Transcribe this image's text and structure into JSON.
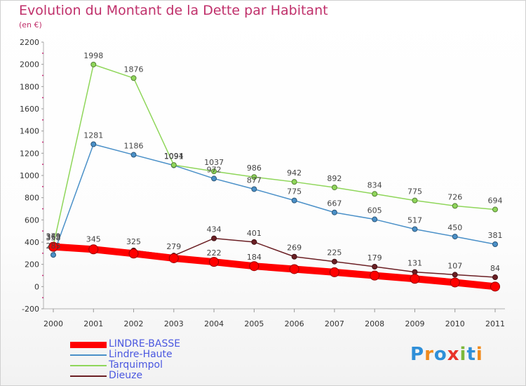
{
  "title": "Evolution du Montant de la Dette par Habitant",
  "unit": "(en €)",
  "logo": {
    "letters": [
      "P",
      "r",
      "o",
      "x",
      "i",
      "t",
      "i"
    ],
    "colors": [
      "#2f8fd8",
      "#f08a1c",
      "#2f8fd8",
      "#e8332a",
      "#7cb83a",
      "#2f8fd8",
      "#f08a1c"
    ]
  },
  "chart_data": {
    "type": "line",
    "title": "Evolution du Montant de la Dette par Habitant",
    "ylabel": "(en €)",
    "xlabel": "",
    "x": [
      "2000",
      "2001",
      "2002",
      "2003",
      "2004",
      "2005",
      "2006",
      "2007",
      "2008",
      "2009",
      "2010",
      "2011"
    ],
    "ylim": [
      -200,
      2200
    ],
    "yticks": [
      -200,
      0,
      200,
      400,
      600,
      800,
      1000,
      1200,
      1400,
      1600,
      1800,
      2000,
      2200
    ],
    "grid": false,
    "legend_position": "bottom-left",
    "series": [
      {
        "name": "LINDRE-BASSE",
        "color": "#ff0000",
        "values": [
          358,
          335,
          297,
          255,
          222,
          184,
          157,
          129,
          99,
          70,
          37,
          0
        ],
        "labels": [
          "358",
          "",
          "",
          "",
          "222",
          "184",
          "",
          "",
          "",
          "",
          "",
          ""
        ]
      },
      {
        "name": "Lindre-Haute",
        "color": "#4a90c8",
        "values": [
          285,
          1281,
          1186,
          1091,
          972,
          877,
          775,
          667,
          605,
          517,
          450,
          381
        ],
        "labels": [
          "285",
          "1281",
          "1186",
          "1091",
          "972",
          "877",
          "775",
          "667",
          "605",
          "517",
          "450",
          "381"
        ]
      },
      {
        "name": "Tarquimpol",
        "color": "#8fd65a",
        "values": [
          369,
          1998,
          1876,
          1094,
          1037,
          986,
          942,
          892,
          834,
          775,
          726,
          694
        ],
        "labels": [
          "369",
          "1998",
          "1876",
          "1094",
          "1037",
          "986",
          "942",
          "892",
          "834",
          "775",
          "726",
          "694"
        ]
      },
      {
        "name": "Dieuze",
        "color": "#6b1f24",
        "values": [
          373,
          345,
          325,
          279,
          434,
          401,
          269,
          225,
          179,
          131,
          107,
          84
        ],
        "labels": [
          "373",
          "345",
          "325",
          "279",
          "434",
          "401",
          "269",
          "225",
          "179",
          "131",
          "107",
          "84"
        ]
      }
    ]
  }
}
